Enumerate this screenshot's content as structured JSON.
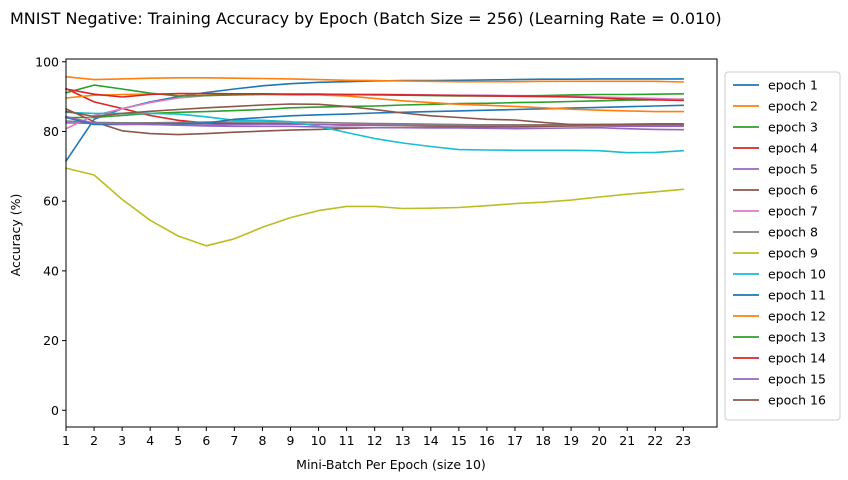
{
  "chart_data": {
    "type": "line",
    "title": "MNIST Negative: Training Accuracy by Epoch (Batch Size = 256) (Learning Rate = 0.010)",
    "xlabel": "Mini-Batch Per Epoch (size 10)",
    "ylabel": "Accuracy (%)",
    "xlim": [
      1,
      24.2
    ],
    "ylim": [
      -4.8,
      100.8
    ],
    "xticks": [
      1,
      2,
      3,
      4,
      5,
      6,
      7,
      8,
      9,
      10,
      11,
      12,
      13,
      14,
      15,
      16,
      17,
      18,
      19,
      20,
      21,
      22,
      23
    ],
    "yticks": [
      0,
      20,
      40,
      60,
      80,
      100
    ],
    "grid": false,
    "legend_position": "outside-right",
    "x": [
      1,
      2,
      3,
      4,
      5,
      6,
      7,
      8,
      9,
      10,
      11,
      12,
      13,
      14,
      15,
      16,
      17,
      18,
      19,
      20,
      21,
      22,
      23
    ],
    "series": [
      {
        "name": "epoch 1",
        "color": "#1f77b4",
        "values": [
          71.5,
          83.5,
          86.5,
          88.5,
          90,
          91.2,
          92.2,
          93.1,
          93.7,
          94.1,
          94.3,
          94.5,
          94.6,
          94.6,
          94.7,
          94.8,
          94.9,
          95.0,
          95.0,
          95.1,
          95.1,
          95.1,
          95.1
        ]
      },
      {
        "name": "epoch 2",
        "color": "#ff7f0e",
        "values": [
          95.7,
          94.9,
          95.1,
          95.3,
          95.4,
          95.4,
          95.3,
          95.2,
          95.1,
          94.9,
          94.7,
          94.6,
          94.5,
          94.4,
          94.3,
          94.3,
          94.3,
          94.4,
          94.4,
          94.4,
          94.4,
          94.4,
          94.2
        ]
      },
      {
        "name": "epoch 3",
        "color": "#2ca02c",
        "values": [
          84,
          84,
          84.6,
          85.2,
          85.5,
          85.7,
          86,
          86.3,
          86.8,
          87.0,
          87.2,
          87.3,
          87.6,
          87.8,
          88.0,
          88.1,
          88.3,
          88.4,
          88.6,
          88.8,
          89.0,
          89.1,
          89.3
        ]
      },
      {
        "name": "epoch 4",
        "color": "#d62728",
        "values": [
          92.3,
          88.5,
          86.6,
          84.6,
          83.2,
          82.4,
          82.3,
          82.2,
          82.2,
          82.0,
          81.9,
          81.9,
          81.9,
          82.0,
          81.9,
          81.9,
          81.9,
          81.9,
          82.0,
          82.0,
          82.0,
          82.0,
          82.0
        ]
      },
      {
        "name": "epoch 5",
        "color": "#9467bd",
        "values": [
          82.5,
          82.3,
          82.2,
          82.0,
          81.9,
          81.9,
          82.0,
          82.1,
          82.1,
          82.0,
          81.8,
          81.8,
          81.8,
          81.7,
          81.6,
          81.6,
          81.6,
          81.6,
          81.6,
          81.6,
          81.5,
          81.5,
          81.5
        ]
      },
      {
        "name": "epoch 6",
        "color": "#8c564b",
        "values": [
          86.5,
          82.8,
          80.2,
          79.4,
          79.1,
          79.4,
          79.8,
          80.1,
          80.4,
          80.6,
          80.9,
          81.1,
          81.2,
          81.3,
          81.3,
          81.3,
          81.3,
          81.5,
          81.6,
          81.7,
          81.8,
          81.9,
          81.9
        ]
      },
      {
        "name": "epoch 7",
        "color": "#e377c2",
        "values": [
          80.8,
          84.6,
          86.5,
          88.3,
          89.6,
          90.3,
          90.6,
          90.7,
          90.7,
          90.7,
          90.6,
          90.6,
          90.6,
          90.5,
          90.4,
          90.4,
          90.3,
          90.2,
          90.1,
          89.9,
          89.7,
          89.5,
          89.2
        ]
      },
      {
        "name": "epoch 8",
        "color": "#7f7f7f",
        "values": [
          83,
          82.6,
          82.5,
          82.5,
          82.6,
          82.7,
          82.7,
          82.7,
          82.7,
          82.6,
          82.4,
          82.3,
          82.2,
          82.1,
          82.0,
          81.9,
          81.9,
          81.9,
          81.9,
          81.9,
          81.9,
          81.9,
          81.9
        ]
      },
      {
        "name": "epoch 9",
        "color": "#bcbd22",
        "values": [
          69.5,
          67.5,
          60.5,
          54.5,
          50.0,
          47.2,
          49.2,
          52.5,
          55.3,
          57.3,
          58.5,
          58.5,
          57.9,
          58.0,
          58.2,
          58.7,
          59.3,
          59.7,
          60.3,
          61.2,
          62.0,
          62.7,
          63.4
        ]
      },
      {
        "name": "epoch 10",
        "color": "#17becf",
        "values": [
          85.5,
          85.2,
          85.2,
          85.2,
          85.0,
          84.2,
          83.2,
          83.2,
          82.8,
          81.5,
          79.7,
          78.0,
          76.7,
          75.7,
          74.8,
          74.7,
          74.6,
          74.6,
          74.6,
          74.5,
          73.9,
          74.0,
          74.5
        ]
      },
      {
        "name": "epoch 11",
        "color": "#1f77b4",
        "values": [
          84,
          82.0,
          82.0,
          82.1,
          82.2,
          82.4,
          83.5,
          84.0,
          84.5,
          84.8,
          85.0,
          85.3,
          85.5,
          85.7,
          85.9,
          86.1,
          86.3,
          86.5,
          86.7,
          86.9,
          87.1,
          87.3,
          87.5
        ]
      },
      {
        "name": "epoch 12",
        "color": "#ff7f0e",
        "values": [
          89.6,
          90.4,
          90.6,
          90.7,
          90.8,
          90.8,
          90.7,
          90.6,
          90.5,
          90.5,
          90.2,
          89.5,
          88.8,
          88.3,
          87.8,
          87.5,
          87.2,
          86.8,
          86.4,
          86.1,
          85.9,
          85.7,
          85.7
        ]
      },
      {
        "name": "epoch 13",
        "color": "#2ca02c",
        "values": [
          91.1,
          93.3,
          92.2,
          91.0,
          90.2,
          90.3,
          90.5,
          90.6,
          90.7,
          90.7,
          90.6,
          90.5,
          90.4,
          90.3,
          90.2,
          90.2,
          90.2,
          90.3,
          90.5,
          90.6,
          90.6,
          90.7,
          90.8
        ]
      },
      {
        "name": "epoch 14",
        "color": "#d62728",
        "values": [
          92.2,
          90.7,
          89.9,
          90.6,
          90.9,
          90.9,
          90.8,
          90.8,
          90.7,
          90.7,
          90.6,
          90.6,
          90.5,
          90.4,
          90.3,
          90.2,
          90.1,
          90.0,
          89.9,
          89.6,
          89.3,
          89.1,
          88.9
        ]
      },
      {
        "name": "epoch 15",
        "color": "#9467bd",
        "values": [
          84.3,
          82.4,
          82.1,
          82.0,
          81.8,
          81.6,
          81.5,
          81.5,
          81.5,
          81.3,
          81.2,
          81.1,
          81.1,
          81.0,
          81.0,
          80.9,
          80.8,
          80.9,
          81.0,
          81.1,
          80.8,
          80.6,
          80.5
        ]
      },
      {
        "name": "epoch 16",
        "color": "#8c564b",
        "values": [
          85.8,
          84.3,
          85.2,
          85.8,
          86.3,
          86.8,
          87.2,
          87.6,
          87.9,
          87.8,
          87.2,
          86.3,
          85.3,
          84.5,
          84.0,
          83.5,
          83.3,
          82.6,
          82.0,
          82.0,
          82.1,
          82.2,
          82.2
        ]
      }
    ]
  }
}
